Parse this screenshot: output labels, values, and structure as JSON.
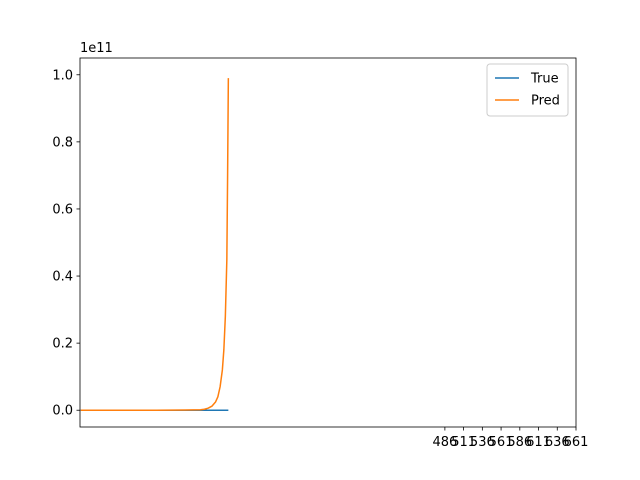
{
  "chart_data": {
    "type": "line",
    "title": "",
    "xlabel": "",
    "ylabel": "",
    "y_scale_label": "1e11",
    "grid": false,
    "legend_position": "top-right",
    "ylim": [
      -0.05,
      1.05
    ],
    "y_ticks": [
      0.0,
      0.2,
      0.4,
      0.6,
      0.8,
      1.0
    ],
    "y_tick_labels": [
      "0.0",
      "0.2",
      "0.4",
      "0.6",
      "0.8",
      "1.0"
    ],
    "xlim": [
      -1,
      661
    ],
    "x_ticks": [
      486,
      511,
      536,
      561,
      586,
      611,
      636,
      661
    ],
    "x_tick_labels": [
      "486",
      "511",
      "536",
      "561",
      "586",
      "611",
      "636",
      "661"
    ],
    "series": [
      {
        "name": "True",
        "color": "#1f77b4",
        "x": [
          0,
          197
        ],
        "y": [
          0.0,
          0.0
        ]
      },
      {
        "name": "Pred",
        "color": "#ff7f0e",
        "x": [
          0,
          100,
          140,
          160,
          165,
          170,
          175,
          180,
          183,
          186,
          189,
          191,
          193,
          195,
          196,
          197
        ],
        "y": [
          0.0,
          0.0,
          0.0005,
          0.0015,
          0.003,
          0.006,
          0.012,
          0.025,
          0.04,
          0.07,
          0.12,
          0.18,
          0.28,
          0.45,
          0.7,
          0.99
        ]
      }
    ]
  }
}
